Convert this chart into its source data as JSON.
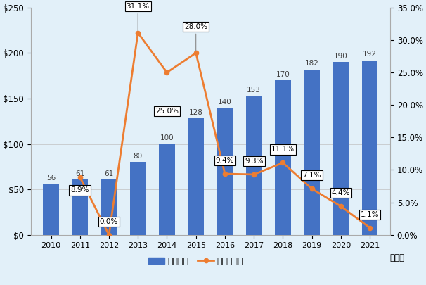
{
  "years": [
    2010,
    2011,
    2012,
    2013,
    2014,
    2015,
    2016,
    2017,
    2018,
    2019,
    2020,
    2021
  ],
  "wages": [
    56,
    61,
    61,
    80,
    100,
    128,
    140,
    153,
    170,
    182,
    190,
    192
  ],
  "growth_years": [
    2011,
    2012,
    2013,
    2014,
    2015,
    2016,
    2017,
    2018,
    2019,
    2020,
    2021
  ],
  "growth_rates": [
    8.9,
    0.0,
    31.1,
    25.0,
    28.0,
    9.4,
    9.3,
    11.1,
    7.1,
    4.4,
    1.1
  ],
  "bar_color": "#4472C4",
  "line_color": "#ED7D31",
  "background_color": "#E2F0F9",
  "left_ylim": [
    0,
    250
  ],
  "right_ylim": [
    0,
    35
  ],
  "left_yticks": [
    0,
    50,
    100,
    150,
    200,
    250
  ],
  "right_yticks": [
    0,
    5,
    10,
    15,
    20,
    25,
    30,
    35
  ],
  "left_yticklabels": [
    "$0",
    "$50",
    "$100",
    "$150",
    "$200",
    "$250"
  ],
  "right_yticklabels": [
    "0.0%",
    "5.0%",
    "10.0%",
    "15.0%",
    "20.0%",
    "25.0%",
    "30.0%",
    "35.0%"
  ],
  "legend_bar": "最低賃金",
  "legend_line": "賃金上昇率",
  "xlabel": "（年）",
  "grid_color": "#C0C0C0",
  "bar_annot_color": "#404040",
  "annot_fontsize": 7.5,
  "bar_annot_fontsize": 7.5
}
